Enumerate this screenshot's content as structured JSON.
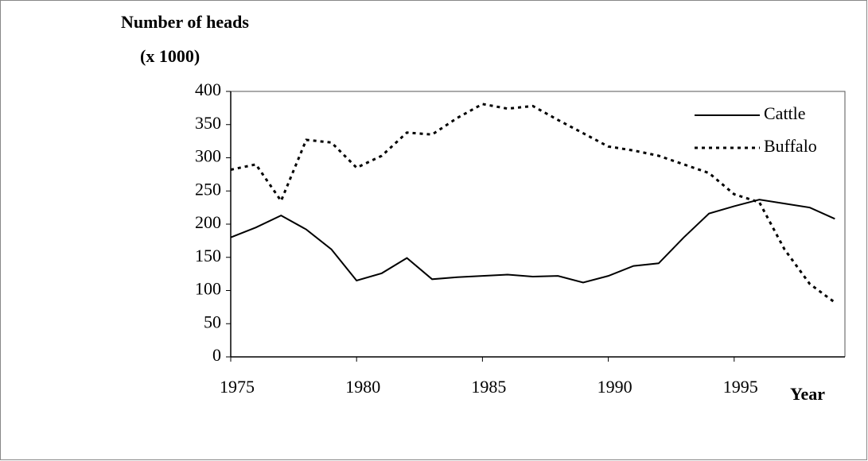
{
  "chart_data": {
    "type": "line",
    "y_label": [
      "Number of heads",
      "(x 1000)"
    ],
    "x_label": "Year",
    "x": [
      1975,
      1976,
      1977,
      1978,
      1979,
      1980,
      1981,
      1982,
      1983,
      1984,
      1985,
      1986,
      1987,
      1988,
      1989,
      1990,
      1991,
      1992,
      1993,
      1994,
      1995,
      1996,
      1997,
      1998,
      1999
    ],
    "series": [
      {
        "name": "Cattle",
        "color": "#000000",
        "style": "solid",
        "values": [
          180,
          195,
          213,
          192,
          162,
          115,
          126,
          149,
          117,
          120,
          122,
          124,
          121,
          122,
          112,
          122,
          137,
          141,
          180,
          216,
          227,
          237,
          231,
          225,
          208
        ]
      },
      {
        "name": "Buffalo",
        "color": "#000000",
        "style": "dotted",
        "values": [
          282,
          290,
          235,
          327,
          323,
          285,
          303,
          338,
          335,
          360,
          381,
          374,
          378,
          357,
          337,
          317,
          311,
          303,
          290,
          277,
          245,
          233,
          162,
          110,
          82
        ]
      }
    ],
    "xlim": [
      1975,
      1999.4
    ],
    "xticks": [
      1975,
      1980,
      1985,
      1990,
      1995
    ],
    "ylim": [
      0,
      400
    ],
    "yticks": [
      0,
      50,
      100,
      150,
      200,
      250,
      300,
      350,
      400
    ],
    "legend": "top-right"
  }
}
